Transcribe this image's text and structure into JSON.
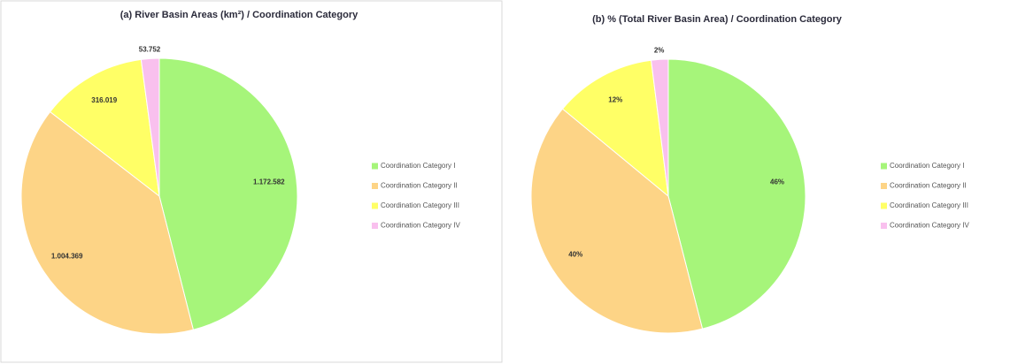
{
  "chart_data": [
    {
      "type": "pie",
      "title": "(a) River Basin Areas (km²) / Coordination Category",
      "categories": [
        "Coordination Category I",
        "Coordination Category II",
        "Coordination Category III",
        "Coordination Category IV"
      ],
      "values": [
        1172582,
        1004369,
        316019,
        53752
      ],
      "value_labels": [
        "1.172.582",
        "1.004.369",
        "316.019",
        "53.752"
      ],
      "colors": [
        "#a6f57a",
        "#fdd486",
        "#ffff66",
        "#f9c0ee"
      ],
      "legend": "right"
    },
    {
      "type": "pie",
      "title": "(b) % (Total River Basin Area) / Coordination Category",
      "categories": [
        "Coordination Category I",
        "Coordination Category II",
        "Coordination Category III",
        "Coordination Category IV"
      ],
      "values": [
        46,
        40,
        12,
        2
      ],
      "value_labels": [
        "46%",
        "40%",
        "12%",
        "2%"
      ],
      "colors": [
        "#a6f57a",
        "#fdd486",
        "#ffff66",
        "#f9c0ee"
      ],
      "legend": "right"
    }
  ]
}
